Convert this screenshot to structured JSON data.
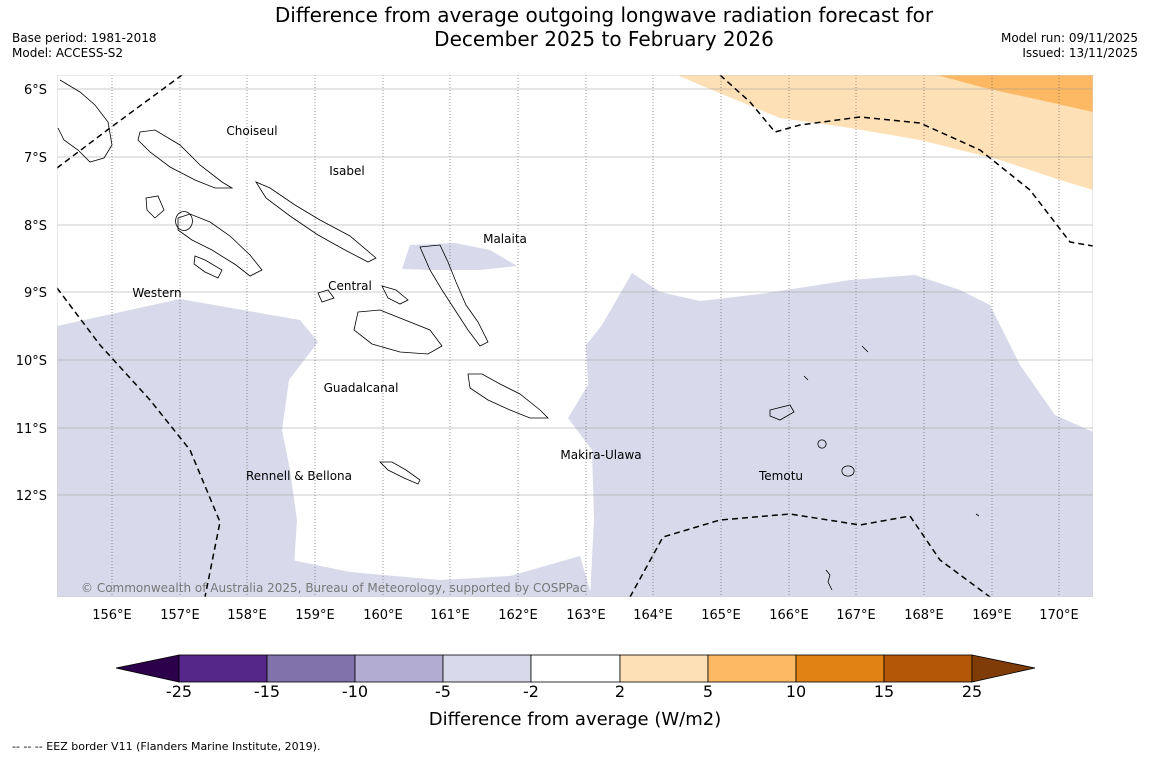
{
  "header": {
    "title_line1": "Difference from average outgoing longwave radiation forecast for",
    "title_line2": "December 2025 to February 2026",
    "base_period": "Base period: 1981-2018",
    "model": "Model: ACCESS-S2",
    "model_run": "Model run: 09/11/2025",
    "issued": "Issued: 13/11/2025"
  },
  "map": {
    "lat_labels": [
      "6°S",
      "7°S",
      "8°S",
      "9°S",
      "10°S",
      "11°S",
      "12°S"
    ],
    "lon_labels": [
      "156°E",
      "157°E",
      "158°E",
      "159°E",
      "160°E",
      "161°E",
      "162°E",
      "163°E",
      "164°E",
      "165°E",
      "166°E",
      "167°E",
      "168°E",
      "169°E",
      "170°E"
    ],
    "region_labels": {
      "choiseul": "Choiseul",
      "isabel": "Isabel",
      "malaita": "Malaita",
      "western": "Western",
      "central": "Central",
      "guadalcanal": "Guadalcanal",
      "makira": "Makira-Ulawa",
      "temotu": "Temotu",
      "rennell": "Rennell & Bellona"
    },
    "copyright": "© Commonwealth of Australia 2025, Bureau of Meteorology, supported by COSPPac"
  },
  "colorbar": {
    "ticks": [
      "-25",
      "-15",
      "-10",
      "-5",
      "-2",
      "2",
      "5",
      "10",
      "15",
      "25"
    ],
    "colors": [
      "#2d004b",
      "#542788",
      "#8073ac",
      "#b2abd2",
      "#d8daeb",
      "#ffffff",
      "#fee0b6",
      "#fdb863",
      "#e08214",
      "#b35806",
      "#7f3b08"
    ],
    "label": "Difference from average (W/m2)"
  },
  "footnote": "--  --  -- EEZ border V11 (Flanders Marine Institute, 2019)."
}
